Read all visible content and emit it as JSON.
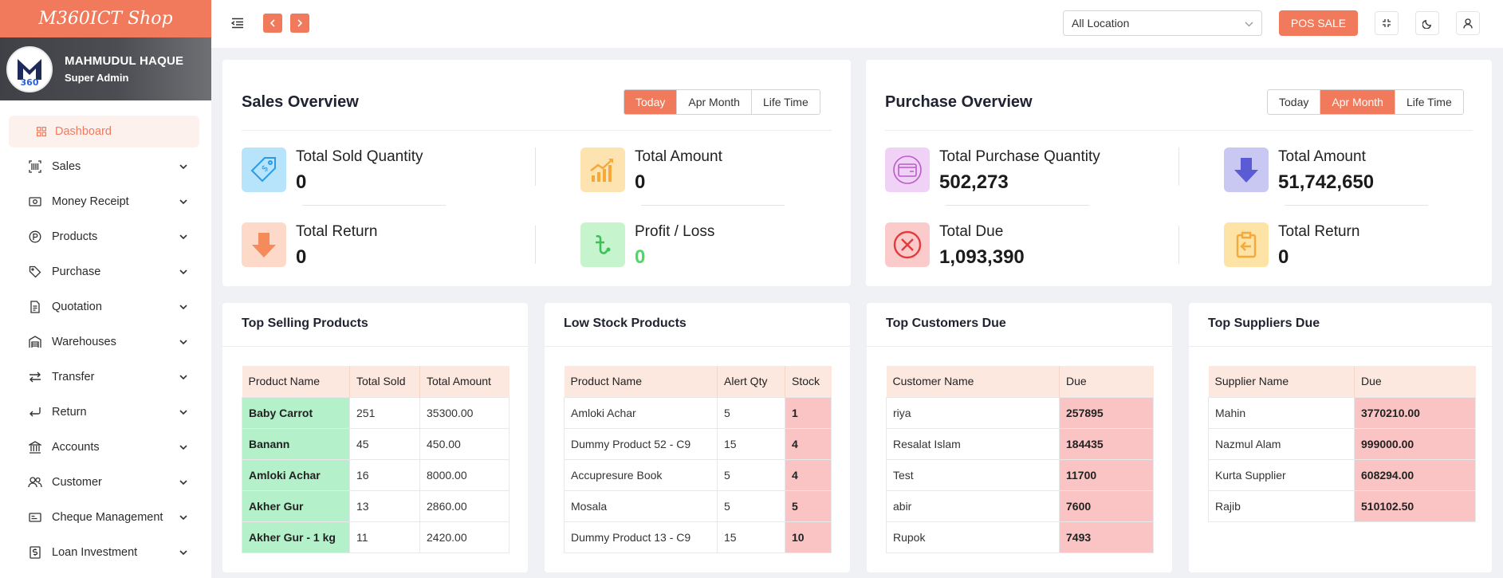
{
  "brand": {
    "name": "M360ICT Shop"
  },
  "user": {
    "name": "MAHMUDUL HAQUE",
    "role": "Super Admin"
  },
  "sidebar": {
    "items": [
      {
        "label": "Dashboard",
        "icon": "grid-icon",
        "active": true
      },
      {
        "label": "Sales",
        "icon": "barcode-icon"
      },
      {
        "label": "Money Receipt",
        "icon": "money-icon"
      },
      {
        "label": "Products",
        "icon": "product-icon"
      },
      {
        "label": "Purchase",
        "icon": "tag-icon"
      },
      {
        "label": "Quotation",
        "icon": "document-icon"
      },
      {
        "label": "Warehouses",
        "icon": "warehouse-icon"
      },
      {
        "label": "Transfer",
        "icon": "transfer-icon"
      },
      {
        "label": "Return",
        "icon": "return-icon"
      },
      {
        "label": "Accounts",
        "icon": "bank-icon"
      },
      {
        "label": "Customer",
        "icon": "users-icon"
      },
      {
        "label": "Cheque Management",
        "icon": "cheque-icon"
      },
      {
        "label": "Loan Investment",
        "icon": "loan-icon"
      }
    ]
  },
  "topbar": {
    "location": "All Location",
    "pos_label": "POS SALE"
  },
  "sales_overview": {
    "title": "Sales Overview",
    "tabs": [
      "Today",
      "Apr Month",
      "Life Time"
    ],
    "active_tab": "Today",
    "stats": {
      "sold_qty": {
        "label": "Total Sold Quantity",
        "value": "0"
      },
      "amount": {
        "label": "Total Amount",
        "value": "0"
      },
      "return": {
        "label": "Total Return",
        "value": "0"
      },
      "profit": {
        "label": "Profit / Loss",
        "value": "0"
      }
    }
  },
  "purchase_overview": {
    "title": "Purchase Overview",
    "tabs": [
      "Today",
      "Apr Month",
      "Life Time"
    ],
    "active_tab": "Apr Month",
    "stats": {
      "qty": {
        "label": "Total Purchase Quantity",
        "value": "502,273"
      },
      "amount": {
        "label": "Total Amount",
        "value": "51,742,650"
      },
      "due": {
        "label": "Total Due",
        "value": "1,093,390"
      },
      "return": {
        "label": "Total Return",
        "value": "0"
      }
    }
  },
  "top_selling": {
    "title": "Top Selling Products",
    "headers": [
      "Product Name",
      "Total Sold",
      "Total Amount"
    ],
    "rows": [
      [
        "Baby Carrot",
        "251",
        "35300.00"
      ],
      [
        "Banann",
        "45",
        "450.00"
      ],
      [
        "Amloki Achar",
        "16",
        "8000.00"
      ],
      [
        "Akher Gur",
        "13",
        "2860.00"
      ],
      [
        "Akher Gur - 1 kg",
        "11",
        "2420.00"
      ]
    ]
  },
  "low_stock": {
    "title": "Low Stock Products",
    "headers": [
      "Product Name",
      "Alert Qty",
      "Stock"
    ],
    "rows": [
      [
        "Amloki Achar",
        "5",
        "1"
      ],
      [
        "Dummy Product 52 - C9",
        "15",
        "4"
      ],
      [
        "Accupresure Book",
        "5",
        "4"
      ],
      [
        "Mosala",
        "5",
        "5"
      ],
      [
        "Dummy Product 13 - C9",
        "15",
        "10"
      ]
    ]
  },
  "top_customers": {
    "title": "Top Customers Due",
    "headers": [
      "Customer Name",
      "Due"
    ],
    "rows": [
      [
        "riya",
        "257895"
      ],
      [
        "Resalat Islam",
        "184435"
      ],
      [
        "Test",
        "11700"
      ],
      [
        "abir",
        "7600"
      ],
      [
        "Rupok",
        "7493"
      ]
    ]
  },
  "top_suppliers": {
    "title": "Top Suppliers Due",
    "headers": [
      "Supplier Name",
      "Due"
    ],
    "rows": [
      [
        "Mahin",
        "3770210.00"
      ],
      [
        "Nazmul Alam",
        "999000.00"
      ],
      [
        "Kurta Supplier",
        "608294.00"
      ],
      [
        "Rajib",
        "510102.50"
      ]
    ]
  },
  "colors": {
    "accent": "#f07a5b",
    "green_cell": "#b4f1ca",
    "red_cell": "#fbc4c4",
    "profit_green": "#4cd964"
  }
}
